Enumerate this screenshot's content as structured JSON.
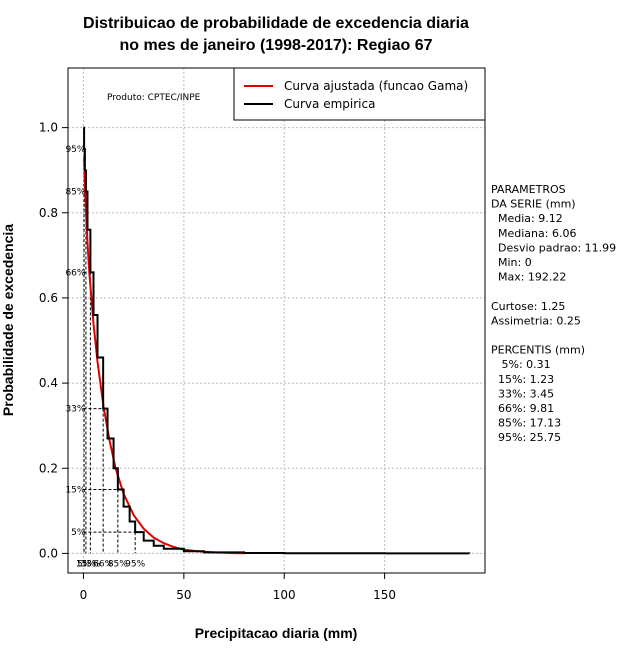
{
  "chart_data": {
    "type": "line",
    "title_line1": "Distribuicao de probabilidade de excedencia diaria",
    "title_line2": "no mes de janeiro (1998-2017): Regiao 67",
    "xlabel": "Precipitacao diaria (mm)",
    "ylabel": "Probabilidade de excedencia",
    "xlim": [
      -7.7,
      200
    ],
    "ylim": [
      -0.046,
      1.14
    ],
    "xticks": [
      0,
      50,
      100,
      150
    ],
    "yticks": [
      0.0,
      0.2,
      0.4,
      0.6,
      0.8,
      1.0
    ],
    "grid": true,
    "product_label": "Produto: CPTEC/INPE",
    "legend": {
      "placement": "top-right",
      "entries": [
        {
          "label": "Curva ajustada (funcao Gama)",
          "color": "#e00000"
        },
        {
          "label": "Curva empirica",
          "color": "#000000"
        }
      ]
    },
    "series": [
      {
        "name": "Curva ajustada (funcao Gama)",
        "color": "#e00000",
        "x": [
          0.3,
          1,
          2,
          3,
          5,
          7,
          10,
          13,
          16,
          20,
          25,
          30,
          35,
          40,
          45,
          50,
          55,
          60,
          65,
          70,
          75,
          80
        ],
        "y": [
          0.93,
          0.83,
          0.73,
          0.655,
          0.54,
          0.45,
          0.345,
          0.265,
          0.2,
          0.14,
          0.09,
          0.058,
          0.037,
          0.024,
          0.015,
          0.009,
          0.006,
          0.004,
          0.0025,
          0.0015,
          0.0008,
          0.0004
        ]
      },
      {
        "name": "Curva empirica",
        "color": "#000000",
        "x": [
          0,
          0.31,
          0.7,
          1.23,
          2,
          3.45,
          5,
          7,
          9.81,
          12,
          15,
          17.13,
          20,
          23,
          25.75,
          30,
          35,
          40,
          50,
          60,
          80,
          100,
          150,
          192.22
        ],
        "y": [
          1.0,
          0.95,
          0.9,
          0.85,
          0.76,
          0.66,
          0.56,
          0.46,
          0.34,
          0.27,
          0.2,
          0.15,
          0.11,
          0.075,
          0.05,
          0.03,
          0.018,
          0.011,
          0.005,
          0.0025,
          0.001,
          0.0005,
          0.0002,
          0.0
        ]
      }
    ],
    "percentile_markers": [
      {
        "label": "5%",
        "x": 0.31,
        "y": 0.95
      },
      {
        "label": "15%",
        "x": 1.23,
        "y": 0.85
      },
      {
        "label": "33%",
        "x": 3.45,
        "y": 0.66
      },
      {
        "label": "66%",
        "x": 9.81,
        "y": 0.34
      },
      {
        "label": "85%",
        "x": 17.13,
        "y": 0.15
      },
      {
        "label": "95%",
        "x": 25.75,
        "y": 0.05
      }
    ],
    "side_panel": [
      "PARAMETROS",
      "DA SERIE (mm)",
      "  Media: 9.12",
      "  Mediana: 6.06",
      "  Desvio padrao: 11.99",
      "  Min: 0",
      "  Max: 192.22",
      "",
      "Curtose: 1.25",
      "Assimetria: 0.25",
      "",
      "PERCENTIS (mm)",
      "   5%: 0.31",
      "  15%: 1.23",
      "  33%: 3.45",
      "  66%: 9.81",
      "  85%: 17.13",
      "  95%: 25.75"
    ]
  }
}
